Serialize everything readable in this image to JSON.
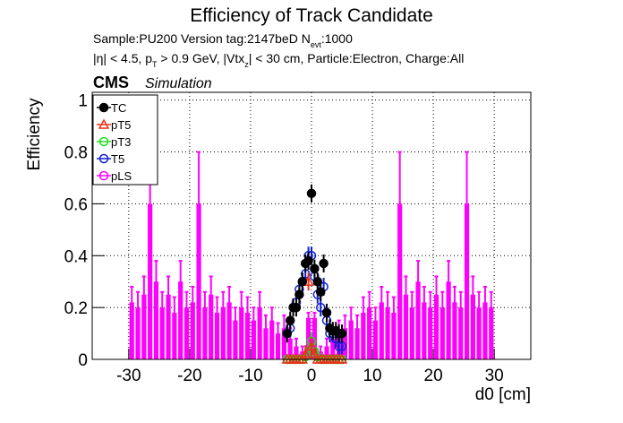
{
  "chart_data": {
    "type": "scatter",
    "title": "Efficiency of Track Candidate",
    "subtitle_lines": [
      [
        "Sample:PU200   Version tag:2147beD  N",
        "evt",
        ":1000"
      ],
      [
        "|η| < 4.5, p",
        "T",
        " > 0.9 GeV, |Vtx",
        "z",
        "| < 30 cm, Particle:Electron, Charge:All"
      ]
    ],
    "cms_label": "CMS",
    "cms_sublabel": "Simulation",
    "x_label": "d0 [cm]",
    "y_label": "Efficiency",
    "xlim": [
      -36,
      36
    ],
    "ylim": [
      0,
      1.03
    ],
    "xticks": [
      -30,
      -20,
      -10,
      0,
      10,
      20,
      30
    ],
    "yticks": [
      0,
      0.2,
      0.4,
      0.6,
      0.8,
      1
    ],
    "grid": true,
    "legend": "top-left",
    "series": [
      {
        "name": "TC",
        "color": "#000000",
        "marker": "filled-circle",
        "x": [
          -4,
          -3.5,
          -3,
          -2.5,
          -2,
          -1.5,
          -1,
          -0.5,
          0,
          0.5,
          1,
          1.5,
          2,
          2.5,
          3,
          3.5,
          4,
          4.5,
          5
        ],
        "values": [
          0.1,
          0.15,
          0.2,
          0.2,
          0.25,
          0.3,
          0.37,
          0.38,
          0.64,
          0.35,
          0.3,
          0.26,
          0.37,
          0.18,
          0.12,
          0.11,
          0.11,
          0.1,
          0.1
        ]
      },
      {
        "name": "pT5",
        "color": "#e8301c",
        "marker": "triangle",
        "x": [
          -4,
          -3.5,
          -3,
          -2.5,
          -2,
          -1.5,
          -1,
          -0.5,
          0,
          0.5,
          1,
          1.5,
          2,
          2.5,
          3,
          3.5,
          4,
          4.5,
          5
        ],
        "values": [
          0,
          0,
          0,
          0,
          0,
          0,
          0.02,
          0.3,
          0.05,
          0.02,
          0,
          0,
          0,
          0,
          0,
          0,
          0,
          0,
          0
        ]
      },
      {
        "name": "pT3",
        "color": "#22dd22",
        "marker": "open-circle",
        "x": [
          -4,
          -3.5,
          -3,
          -2.5,
          -2,
          -1.5,
          -1,
          -0.5,
          0,
          0.5,
          1,
          1.5,
          2,
          2.5,
          3,
          3.5,
          4,
          4.5,
          5
        ],
        "values": [
          0,
          0,
          0,
          0,
          0,
          0,
          0.01,
          0.03,
          0.07,
          0.03,
          0.01,
          0,
          0,
          0,
          0,
          0,
          0,
          0,
          0
        ]
      },
      {
        "name": "T5",
        "color": "#1020d0",
        "marker": "open-circle",
        "x": [
          -4,
          -3.5,
          -3,
          -2.5,
          -2,
          -1.5,
          -1,
          -0.5,
          0,
          0.5,
          1,
          1.5,
          2,
          2.5,
          3,
          3.5,
          4,
          4.5,
          5
        ],
        "values": [
          0.1,
          0.12,
          0.2,
          0.22,
          0.27,
          0.3,
          0.33,
          0.4,
          0.4,
          0.32,
          0.25,
          0.2,
          0.28,
          0.15,
          0.1,
          0.1,
          0.08,
          0.05,
          0.05
        ]
      },
      {
        "name": "pLS",
        "color": "#ff00ff",
        "marker": "bar",
        "x": [
          -29.5,
          -28.5,
          -27.5,
          -26.5,
          -25.5,
          -24.5,
          -23.5,
          -22.5,
          -21.5,
          -20.5,
          -19.5,
          -18.5,
          -17.5,
          -16.5,
          -15.5,
          -14.5,
          -13.5,
          -12.5,
          -11.5,
          -10.5,
          -9.5,
          -8.5,
          -7.5,
          -6.5,
          -5.5,
          -4.5,
          -3.5,
          -2.5,
          -1.5,
          -0.5,
          0.5,
          1.5,
          2.5,
          3.5,
          4.5,
          5.5,
          6.5,
          7.5,
          8.5,
          9.5,
          10.5,
          11.5,
          12.5,
          13.5,
          14.5,
          15.5,
          16.5,
          17.5,
          18.5,
          19.5,
          20.5,
          21.5,
          22.5,
          23.5,
          24.5,
          25.5,
          26.5,
          27.5,
          28.5,
          29.5
        ],
        "values": [
          0.22,
          0.2,
          0.25,
          0.6,
          0.3,
          0.2,
          0.25,
          0.18,
          0.3,
          0.2,
          0.22,
          0.6,
          0.2,
          0.25,
          0.18,
          0.2,
          0.22,
          0.15,
          0.2,
          0.18,
          0.15,
          0.2,
          0.12,
          0.15,
          0.1,
          0.12,
          0.08,
          0.05,
          0.03,
          0.16,
          0.16,
          0.03,
          0.05,
          0.08,
          0.1,
          0.12,
          0.15,
          0.12,
          0.18,
          0.2,
          0.15,
          0.22,
          0.2,
          0.18,
          0.6,
          0.25,
          0.2,
          0.3,
          0.22,
          0.2,
          0.25,
          0.2,
          0.3,
          0.22,
          0.2,
          0.6,
          0.25,
          0.2,
          0.22,
          0.2
        ],
        "errors": [
          0.06,
          0.06,
          0.07,
          0.2,
          0.08,
          0.06,
          0.07,
          0.06,
          0.08,
          0.06,
          0.06,
          0.2,
          0.06,
          0.07,
          0.06,
          0.06,
          0.06,
          0.05,
          0.06,
          0.06,
          0.05,
          0.06,
          0.05,
          0.05,
          0.04,
          0.05,
          0.04,
          0.03,
          0.02,
          0.02,
          0.02,
          0.02,
          0.03,
          0.04,
          0.05,
          0.05,
          0.05,
          0.05,
          0.06,
          0.06,
          0.05,
          0.06,
          0.06,
          0.06,
          0.2,
          0.07,
          0.06,
          0.08,
          0.06,
          0.06,
          0.07,
          0.06,
          0.08,
          0.06,
          0.06,
          0.2,
          0.07,
          0.06,
          0.06,
          0.06
        ]
      }
    ]
  }
}
